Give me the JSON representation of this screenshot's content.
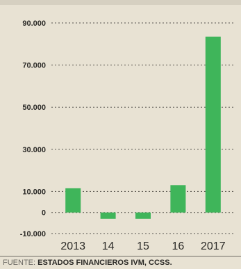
{
  "chart_data": {
    "type": "bar",
    "categories": [
      "2013",
      "14",
      "15",
      "16",
      "2017"
    ],
    "values": [
      11500,
      -3000,
      -3000,
      13000,
      83500
    ],
    "ylim": [
      -10000,
      90000
    ],
    "yticks": [
      -10000,
      0,
      10000,
      30000,
      50000,
      70000,
      90000
    ],
    "ytick_labels": [
      "-10.000",
      "0",
      "10.000",
      "30.000",
      "50.000",
      "70.000",
      "90.000"
    ],
    "grid": true,
    "bar_color": "#3fb55a"
  },
  "footer": {
    "source_label": "FUENTE:",
    "source_text": "ESTADOS FINANCIEROS IVM, CCSS."
  }
}
